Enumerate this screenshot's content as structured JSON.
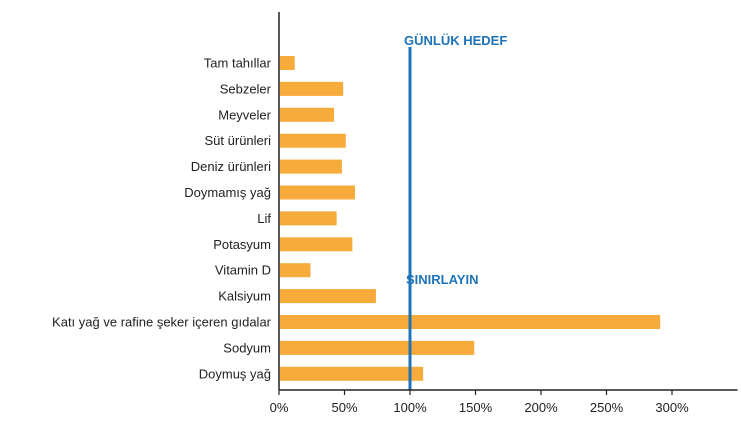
{
  "chart_data": {
    "type": "bar",
    "orientation": "horizontal",
    "categories": [
      "Tam tahıllar",
      "Sebzeler",
      "Meyveler",
      "Süt ürünleri",
      "Deniz ürünleri",
      "Doymamış yağ",
      "Lif",
      "Potasyum",
      "Vitamin D",
      "Kalsiyum",
      "Katı yağ ve rafine şeker içeren gıdalar",
      "Sodyum",
      "Doymuş yağ"
    ],
    "values": [
      12,
      49,
      42,
      51,
      48,
      58,
      44,
      56,
      24,
      74,
      291,
      149,
      110
    ],
    "xlim": [
      0,
      350
    ],
    "xticks": [
      0,
      50,
      100,
      150,
      200,
      250,
      300
    ],
    "xtick_labels": [
      "0%",
      "50%",
      "100%",
      "150%",
      "200%",
      "250%",
      "300%"
    ],
    "reference_line": {
      "value": 100
    },
    "annotations": [
      {
        "text": "GÜNLÜK HEDEF"
      },
      {
        "text": "SINIRLAYIN"
      }
    ],
    "colors": {
      "bar": "#F7AB3B",
      "reference": "#1F73B7",
      "axis": "#222222"
    },
    "grid": false,
    "legend": "none"
  }
}
